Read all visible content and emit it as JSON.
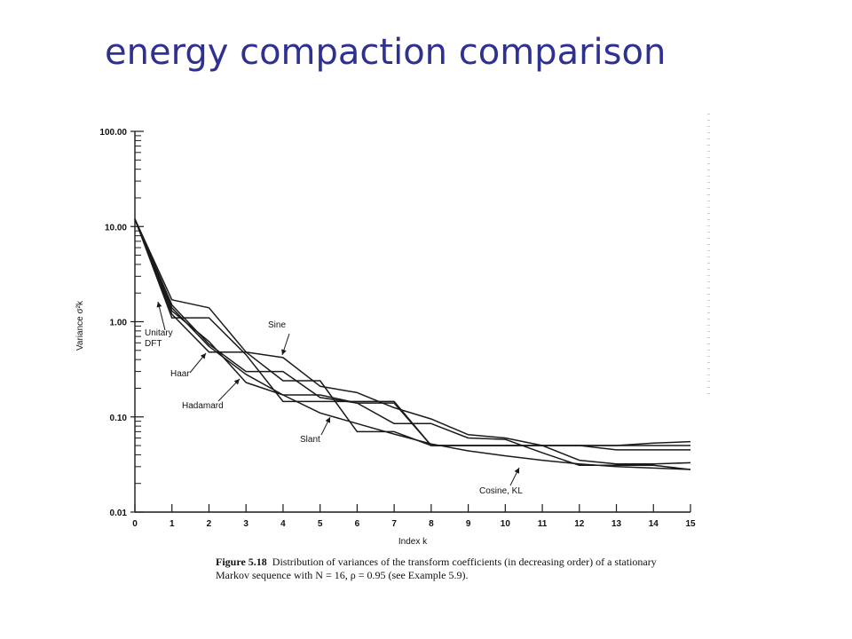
{
  "slide": {
    "title": "energy compaction comparison"
  },
  "figure": {
    "caption_label": "Figure 5.18",
    "caption_text": "Distribution of variances of the transform coefficients (in decreasing order) of a stationary Markov sequence with N = 16, ρ = 0.95 (see Example 5.9)."
  },
  "chart_data": {
    "type": "line",
    "title": "",
    "xlabel": "Index k",
    "ylabel": "Variance σ²k",
    "yscale": "log",
    "ylim": [
      0.01,
      100
    ],
    "xlim": [
      0,
      15
    ],
    "x": [
      0,
      1,
      2,
      3,
      4,
      5,
      6,
      7,
      8,
      9,
      10,
      11,
      12,
      13,
      14,
      15
    ],
    "x_tick_labels": [
      "0",
      "1",
      "2",
      "3",
      "4",
      "5",
      "6",
      "7",
      "8",
      "9",
      "10",
      "11",
      "12",
      "13",
      "14",
      "15"
    ],
    "y_tick_labels": [
      "100.00",
      "10.00",
      "1.00",
      "0.10",
      "0.01"
    ],
    "y_ticks": [
      100,
      10,
      1,
      0.1,
      0.01
    ],
    "grid": false,
    "series": [
      {
        "name": "Cosine, KL",
        "values": [
          12.0,
          1.4,
          0.55,
          0.28,
          0.17,
          0.11,
          0.085,
          0.066,
          0.052,
          0.044,
          0.039,
          0.035,
          0.032,
          0.03,
          0.029,
          0.028
        ]
      },
      {
        "name": "Unitary DFT",
        "values": [
          12.0,
          1.1,
          1.1,
          0.45,
          0.145,
          0.145,
          0.145,
          0.145,
          0.05,
          0.05,
          0.05,
          0.05,
          0.05,
          0.045,
          0.045,
          0.045
        ]
      },
      {
        "name": "Haar",
        "values": [
          12.0,
          1.2,
          0.48,
          0.48,
          0.24,
          0.24,
          0.07,
          0.07,
          0.05,
          0.05,
          0.05,
          0.05,
          0.05,
          0.05,
          0.05,
          0.05
        ]
      },
      {
        "name": "Sine",
        "values": [
          12.0,
          1.7,
          1.4,
          0.48,
          0.42,
          0.21,
          0.18,
          0.125,
          0.095,
          0.065,
          0.06,
          0.05,
          0.035,
          0.032,
          0.032,
          0.033
        ]
      },
      {
        "name": "Hadamard",
        "values": [
          12.0,
          1.3,
          0.62,
          0.23,
          0.17,
          0.17,
          0.14,
          0.14,
          0.05,
          0.05,
          0.05,
          0.05,
          0.05,
          0.05,
          0.053,
          0.055
        ]
      },
      {
        "name": "Slant",
        "values": [
          12.0,
          1.5,
          0.58,
          0.3,
          0.3,
          0.16,
          0.14,
          0.085,
          0.085,
          0.06,
          0.058,
          0.042,
          0.031,
          0.031,
          0.031,
          0.028
        ]
      }
    ],
    "annotations": [
      {
        "text": "Sine",
        "series": "Sine"
      },
      {
        "text": "Unitary",
        "series": "Unitary DFT"
      },
      {
        "text": "DFT",
        "series": "Unitary DFT"
      },
      {
        "text": "Haar",
        "series": "Haar"
      },
      {
        "text": "Hadamard",
        "series": "Hadamard"
      },
      {
        "text": "Slant",
        "series": "Slant"
      },
      {
        "text": "Cosine, KL",
        "series": "Cosine, KL"
      }
    ],
    "line_color": "#1a1a1a"
  }
}
